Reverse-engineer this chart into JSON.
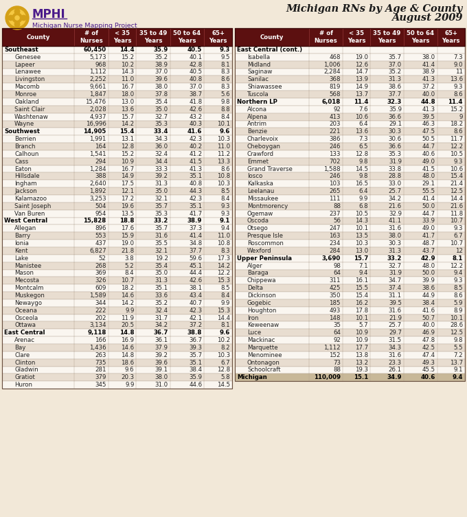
{
  "bg_color": "#f2e8d8",
  "header_bg": "#5c1010",
  "header_fg": "#ffffff",
  "region_fg": "#000000",
  "county_fg": "#222222",
  "alt_row_bg": "#e8ddd0",
  "white_row_bg": "#faf6f0",
  "total_bg": "#c8b898",
  "left_table": [
    {
      "type": "region",
      "name": "Southeast",
      "nurses": "60,450",
      "c35": "14.4",
      "c3549": "35.9",
      "c5064": "40.5",
      "c65": "9.3"
    },
    {
      "type": "county",
      "name": "Genesee",
      "nurses": "5,173",
      "c35": "15.2",
      "c3549": "35.2",
      "c5064": "40.1",
      "c65": "9.5"
    },
    {
      "type": "county",
      "name": "Lapeer",
      "nurses": "968",
      "c35": "10.2",
      "c3549": "38.9",
      "c5064": "42.8",
      "c65": "8.1"
    },
    {
      "type": "county",
      "name": "Lenawee",
      "nurses": "1,112",
      "c35": "14.3",
      "c3549": "37.0",
      "c5064": "40.5",
      "c65": "8.3"
    },
    {
      "type": "county",
      "name": "Livingston",
      "nurses": "2,252",
      "c35": "11.0",
      "c3549": "39.6",
      "c5064": "40.8",
      "c65": "8.6"
    },
    {
      "type": "county",
      "name": "Macomb",
      "nurses": "9,661",
      "c35": "16.7",
      "c3549": "38.0",
      "c5064": "37.0",
      "c65": "8.3"
    },
    {
      "type": "county",
      "name": "Monroe",
      "nurses": "1,847",
      "c35": "18.0",
      "c3549": "37.8",
      "c5064": "38.7",
      "c65": "5.6"
    },
    {
      "type": "county",
      "name": "Oakland",
      "nurses": "15,476",
      "c35": "13.0",
      "c3549": "35.4",
      "c5064": "41.8",
      "c65": "9.8"
    },
    {
      "type": "county",
      "name": "Saint Clair",
      "nurses": "2,028",
      "c35": "13.6",
      "c3549": "35.0",
      "c5064": "42.6",
      "c65": "8.8"
    },
    {
      "type": "county",
      "name": "Washtenaw",
      "nurses": "4,937",
      "c35": "15.7",
      "c3549": "32.7",
      "c5064": "43.2",
      "c65": "8.4"
    },
    {
      "type": "county",
      "name": "Wayne",
      "nurses": "16,996",
      "c35": "14.2",
      "c3549": "35.3",
      "c5064": "40.3",
      "c65": "10.1"
    },
    {
      "type": "region",
      "name": "Southwest",
      "nurses": "14,905",
      "c35": "15.4",
      "c3549": "33.4",
      "c5064": "41.6",
      "c65": "9.6"
    },
    {
      "type": "county",
      "name": "Berrien",
      "nurses": "1,991",
      "c35": "13.1",
      "c3549": "34.3",
      "c5064": "42.3",
      "c65": "10.3"
    },
    {
      "type": "county",
      "name": "Branch",
      "nurses": "164",
      "c35": "12.8",
      "c3549": "36.0",
      "c5064": "40.2",
      "c65": "11.0"
    },
    {
      "type": "county",
      "name": "Calhoun",
      "nurses": "1,541",
      "c35": "15.2",
      "c3549": "32.4",
      "c5064": "41.2",
      "c65": "11.2"
    },
    {
      "type": "county",
      "name": "Cass",
      "nurses": "294",
      "c35": "10.9",
      "c3549": "34.4",
      "c5064": "41.5",
      "c65": "13.3"
    },
    {
      "type": "county",
      "name": "Eaton",
      "nurses": "1,284",
      "c35": "16.7",
      "c3549": "33.3",
      "c5064": "41.3",
      "c65": "8.6"
    },
    {
      "type": "county",
      "name": "Hillsdale",
      "nurses": "388",
      "c35": "14.9",
      "c3549": "39.2",
      "c5064": "35.1",
      "c65": "10.8"
    },
    {
      "type": "county",
      "name": "Ingham",
      "nurses": "2,640",
      "c35": "17.5",
      "c3549": "31.3",
      "c5064": "40.8",
      "c65": "10.3"
    },
    {
      "type": "county",
      "name": "Jackson",
      "nurses": "1,892",
      "c35": "12.1",
      "c3549": "35.0",
      "c5064": "44.3",
      "c65": "8.5"
    },
    {
      "type": "county",
      "name": "Kalamazoo",
      "nurses": "3,253",
      "c35": "17.2",
      "c3549": "32.1",
      "c5064": "42.3",
      "c65": "8.4"
    },
    {
      "type": "county",
      "name": "Saint Joseph",
      "nurses": "504",
      "c35": "19.6",
      "c3549": "35.7",
      "c5064": "35.1",
      "c65": "9.3"
    },
    {
      "type": "county",
      "name": "Van Buren",
      "nurses": "954",
      "c35": "13.5",
      "c3549": "35.3",
      "c5064": "41.7",
      "c65": "9.3"
    },
    {
      "type": "region",
      "name": "West Central",
      "nurses": "15,828",
      "c35": "18.8",
      "c3549": "33.2",
      "c5064": "38.9",
      "c65": "9.1"
    },
    {
      "type": "county",
      "name": "Allegan",
      "nurses": "896",
      "c35": "17.6",
      "c3549": "35.7",
      "c5064": "37.3",
      "c65": "9.4"
    },
    {
      "type": "county",
      "name": "Barry",
      "nurses": "553",
      "c35": "15.9",
      "c3549": "31.6",
      "c5064": "41.4",
      "c65": "11.0"
    },
    {
      "type": "county",
      "name": "Ionia",
      "nurses": "437",
      "c35": "19.0",
      "c3549": "35.5",
      "c5064": "34.8",
      "c65": "10.8"
    },
    {
      "type": "county",
      "name": "Kent",
      "nurses": "6,827",
      "c35": "21.8",
      "c3549": "32.1",
      "c5064": "37.7",
      "c65": "8.3"
    },
    {
      "type": "county",
      "name": "Lake",
      "nurses": "52",
      "c35": "3.8",
      "c3549": "19.2",
      "c5064": "59.6",
      "c65": "17.3"
    },
    {
      "type": "county",
      "name": "Manistee",
      "nurses": "268",
      "c35": "5.2",
      "c3549": "35.4",
      "c5064": "45.1",
      "c65": "14.2"
    },
    {
      "type": "county",
      "name": "Mason",
      "nurses": "369",
      "c35": "8.4",
      "c3549": "35.0",
      "c5064": "44.4",
      "c65": "12.2"
    },
    {
      "type": "county",
      "name": "Mecosta",
      "nurses": "326",
      "c35": "10.7",
      "c3549": "31.3",
      "c5064": "42.6",
      "c65": "15.3"
    },
    {
      "type": "county",
      "name": "Montcalm",
      "nurses": "609",
      "c35": "18.2",
      "c3549": "35.1",
      "c5064": "38.1",
      "c65": "8.5"
    },
    {
      "type": "county",
      "name": "Muskegon",
      "nurses": "1,589",
      "c35": "14.6",
      "c3549": "33.6",
      "c5064": "43.4",
      "c65": "8.4"
    },
    {
      "type": "county",
      "name": "Newaygo",
      "nurses": "344",
      "c35": "14.2",
      "c3549": "35.2",
      "c5064": "40.7",
      "c65": "9.9"
    },
    {
      "type": "county",
      "name": "Oceana",
      "nurses": "222",
      "c35": "9.9",
      "c3549": "32.4",
      "c5064": "42.3",
      "c65": "15.3"
    },
    {
      "type": "county",
      "name": "Osceola",
      "nurses": "202",
      "c35": "11.9",
      "c3549": "31.7",
      "c5064": "42.1",
      "c65": "14.4"
    },
    {
      "type": "county",
      "name": "Ottawa",
      "nurses": "3,134",
      "c35": "20.5",
      "c3549": "34.2",
      "c5064": "37.2",
      "c65": "8.1"
    },
    {
      "type": "region",
      "name": "East Central",
      "nurses": "9,118",
      "c35": "14.8",
      "c3549": "36.7",
      "c5064": "38.8",
      "c65": "9.6"
    },
    {
      "type": "county",
      "name": "Arenac",
      "nurses": "166",
      "c35": "16.9",
      "c3549": "36.1",
      "c5064": "36.7",
      "c65": "10.2"
    },
    {
      "type": "county",
      "name": "Bay",
      "nurses": "1,436",
      "c35": "14.6",
      "c3549": "37.9",
      "c5064": "39.3",
      "c65": "8.2"
    },
    {
      "type": "county",
      "name": "Clare",
      "nurses": "263",
      "c35": "14.8",
      "c3549": "39.2",
      "c5064": "35.7",
      "c65": "10.3"
    },
    {
      "type": "county",
      "name": "Clinton",
      "nurses": "735",
      "c35": "18.6",
      "c3549": "39.6",
      "c5064": "35.1",
      "c65": "6.7"
    },
    {
      "type": "county",
      "name": "Gladwin",
      "nurses": "281",
      "c35": "9.6",
      "c3549": "39.1",
      "c5064": "38.4",
      "c65": "12.8"
    },
    {
      "type": "county",
      "name": "Gratiot",
      "nurses": "379",
      "c35": "20.3",
      "c3549": "38.0",
      "c5064": "35.9",
      "c65": "5.8"
    },
    {
      "type": "county",
      "name": "Huron",
      "nurses": "345",
      "c35": "9.9",
      "c3549": "31.0",
      "c5064": "44.6",
      "c65": "14.5"
    }
  ],
  "right_table": [
    {
      "type": "region",
      "name": "East Central (cont.)",
      "nurses": "",
      "c35": "",
      "c3549": "",
      "c5064": "",
      "c65": ""
    },
    {
      "type": "county",
      "name": "Isabella",
      "nurses": "468",
      "c35": "19.0",
      "c3549": "35.7",
      "c5064": "38.0",
      "c65": "7.3"
    },
    {
      "type": "county",
      "name": "Midland",
      "nurses": "1,006",
      "c35": "12.6",
      "c3549": "37.0",
      "c5064": "41.4",
      "c65": "9.0"
    },
    {
      "type": "county",
      "name": "Saginaw",
      "nurses": "2,284",
      "c35": "14.7",
      "c3549": "35.2",
      "c5064": "38.9",
      "c65": "11"
    },
    {
      "type": "county",
      "name": "Sanilac",
      "nurses": "368",
      "c35": "13.9",
      "c3549": "31.3",
      "c5064": "41.3",
      "c65": "13.6"
    },
    {
      "type": "county",
      "name": "Shiawassee",
      "nurses": "819",
      "c35": "14.9",
      "c3549": "38.6",
      "c5064": "37.2",
      "c65": "9.3"
    },
    {
      "type": "county",
      "name": "Tuscola",
      "nurses": "568",
      "c35": "13.7",
      "c3549": "37.7",
      "c5064": "40.0",
      "c65": "8.6"
    },
    {
      "type": "region",
      "name": "Northern LP",
      "nurses": "6,018",
      "c35": "11.4",
      "c3549": "32.3",
      "c5064": "44.8",
      "c65": "11.4"
    },
    {
      "type": "county",
      "name": "Alcona",
      "nurses": "92",
      "c35": "7.6",
      "c3549": "35.9",
      "c5064": "41.3",
      "c65": "15.2"
    },
    {
      "type": "county",
      "name": "Alpena",
      "nurses": "413",
      "c35": "10.6",
      "c3549": "36.6",
      "c5064": "39.5",
      "c65": "9"
    },
    {
      "type": "county",
      "name": "Antrim",
      "nurses": "203",
      "c35": "6.4",
      "c3549": "29.1",
      "c5064": "46.3",
      "c65": "18.2"
    },
    {
      "type": "county",
      "name": "Benzie",
      "nurses": "221",
      "c35": "13.6",
      "c3549": "30.3",
      "c5064": "47.5",
      "c65": "8.6"
    },
    {
      "type": "county",
      "name": "Charlevoix",
      "nurses": "386",
      "c35": "7.3",
      "c3549": "30.6",
      "c5064": "50.5",
      "c65": "11.7"
    },
    {
      "type": "county",
      "name": "Cheboygan",
      "nurses": "246",
      "c35": "6.5",
      "c3549": "36.6",
      "c5064": "44.7",
      "c65": "12.2"
    },
    {
      "type": "county",
      "name": "Crawford",
      "nurses": "133",
      "c35": "12.8",
      "c3549": "35.3",
      "c5064": "40.6",
      "c65": "10.5"
    },
    {
      "type": "county",
      "name": "Emmet",
      "nurses": "702",
      "c35": "9.8",
      "c3549": "31.9",
      "c5064": "49.0",
      "c65": "9.3"
    },
    {
      "type": "county",
      "name": "Grand Traverse",
      "nurses": "1,588",
      "c35": "14.5",
      "c3549": "33.8",
      "c5064": "41.5",
      "c65": "10.6"
    },
    {
      "type": "county",
      "name": "Iosco",
      "nurses": "246",
      "c35": "9.8",
      "c3549": "28.8",
      "c5064": "48.0",
      "c65": "15.4"
    },
    {
      "type": "county",
      "name": "Kalkaska",
      "nurses": "103",
      "c35": "16.5",
      "c3549": "33.0",
      "c5064": "29.1",
      "c65": "21.4"
    },
    {
      "type": "county",
      "name": "Leelanau",
      "nurses": "265",
      "c35": "6.4",
      "c3549": "25.7",
      "c5064": "55.5",
      "c65": "12.5"
    },
    {
      "type": "county",
      "name": "Missaukee",
      "nurses": "111",
      "c35": "9.9",
      "c3549": "34.2",
      "c5064": "41.4",
      "c65": "14.4"
    },
    {
      "type": "county",
      "name": "Montmorency",
      "nurses": "88",
      "c35": "6.8",
      "c3549": "21.6",
      "c5064": "50.0",
      "c65": "21.6"
    },
    {
      "type": "county",
      "name": "Ogemaw",
      "nurses": "237",
      "c35": "10.5",
      "c3549": "32.9",
      "c5064": "44.7",
      "c65": "11.8"
    },
    {
      "type": "county",
      "name": "Oscoda",
      "nurses": "56",
      "c35": "14.3",
      "c3549": "41.1",
      "c5064": "33.9",
      "c65": "10.7"
    },
    {
      "type": "county",
      "name": "Otsego",
      "nurses": "247",
      "c35": "10.1",
      "c3549": "31.6",
      "c5064": "49.0",
      "c65": "9.3"
    },
    {
      "type": "county",
      "name": "Presque Isle",
      "nurses": "163",
      "c35": "13.5",
      "c3549": "38.0",
      "c5064": "41.7",
      "c65": "6.7"
    },
    {
      "type": "county",
      "name": "Roscommon",
      "nurses": "234",
      "c35": "10.3",
      "c3549": "30.3",
      "c5064": "48.7",
      "c65": "10.7"
    },
    {
      "type": "county",
      "name": "Wexford",
      "nurses": "284",
      "c35": "13.0",
      "c3549": "31.3",
      "c5064": "43.7",
      "c65": "12"
    },
    {
      "type": "region",
      "name": "Upper Peninsula",
      "nurses": "3,690",
      "c35": "15.7",
      "c3549": "33.2",
      "c5064": "42.9",
      "c65": "8.1"
    },
    {
      "type": "county",
      "name": "Alger",
      "nurses": "98",
      "c35": "7.1",
      "c3549": "32.7",
      "c5064": "48.0",
      "c65": "12.2"
    },
    {
      "type": "county",
      "name": "Baraga",
      "nurses": "64",
      "c35": "9.4",
      "c3549": "31.9",
      "c5064": "50.0",
      "c65": "9.4"
    },
    {
      "type": "county",
      "name": "Chippewa",
      "nurses": "311",
      "c35": "16.1",
      "c3549": "34.7",
      "c5064": "39.9",
      "c65": "9.3"
    },
    {
      "type": "county",
      "name": "Delta",
      "nurses": "425",
      "c35": "15.5",
      "c3549": "37.4",
      "c5064": "38.6",
      "c65": "8.5"
    },
    {
      "type": "county",
      "name": "Dickinson",
      "nurses": "350",
      "c35": "15.4",
      "c3549": "31.1",
      "c5064": "44.9",
      "c65": "8.6"
    },
    {
      "type": "county",
      "name": "Gogebic",
      "nurses": "185",
      "c35": "16.2",
      "c3549": "39.5",
      "c5064": "38.4",
      "c65": "5.9"
    },
    {
      "type": "county",
      "name": "Houghton",
      "nurses": "493",
      "c35": "17.8",
      "c3549": "31.6",
      "c5064": "41.6",
      "c65": "8.9"
    },
    {
      "type": "county",
      "name": "Iron",
      "nurses": "148",
      "c35": "10.1",
      "c3549": "21.9",
      "c5064": "50.7",
      "c65": "10.1"
    },
    {
      "type": "county",
      "name": "Keweenaw",
      "nurses": "35",
      "c35": "5.7",
      "c3549": "25.7",
      "c5064": "40.0",
      "c65": "28.6"
    },
    {
      "type": "county",
      "name": "Luce",
      "nurses": "64",
      "c35": "10.9",
      "c3549": "29.7",
      "c5064": "46.9",
      "c65": "12.5"
    },
    {
      "type": "county",
      "name": "Mackinac",
      "nurses": "92",
      "c35": "10.9",
      "c3549": "31.5",
      "c5064": "47.8",
      "c65": "9.8"
    },
    {
      "type": "county",
      "name": "Marquette",
      "nurses": "1,112",
      "c35": "17.7",
      "c3549": "34.3",
      "c5064": "42.5",
      "c65": "5.5"
    },
    {
      "type": "county",
      "name": "Menominee",
      "nurses": "152",
      "c35": "13.8",
      "c3549": "31.6",
      "c5064": "47.4",
      "c65": "7.2"
    },
    {
      "type": "county",
      "name": "Ontonagon",
      "nurses": "73",
      "c35": "13.2",
      "c3549": "23.3",
      "c5064": "49.3",
      "c65": "13.7"
    },
    {
      "type": "county",
      "name": "Schoolcraft",
      "nurses": "88",
      "c35": "19.3",
      "c3549": "26.1",
      "c5064": "45.5",
      "c65": "9.1"
    },
    {
      "type": "total",
      "name": "Michigan",
      "nurses": "110,009",
      "c35": "15.1",
      "c3549": "34.9",
      "c5064": "40.6",
      "c65": "9.4"
    }
  ],
  "col_headers": [
    "County",
    "# of\nNurses",
    "< 35\nYears",
    "35 to 49\nYears",
    "50 to 64\nYears",
    "65+\nYears"
  ]
}
